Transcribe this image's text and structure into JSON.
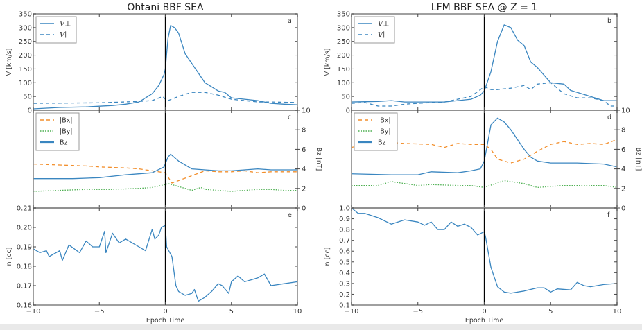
{
  "chart_data": [
    {
      "id": "a",
      "type": "line",
      "column_title": "Ohtani BBF SEA",
      "panel_label": "a",
      "ylabel": "V [km/s]",
      "xlim": [
        -10,
        10
      ],
      "ylim": [
        0,
        350
      ],
      "yticks": [
        0,
        50,
        100,
        150,
        200,
        250,
        300,
        350
      ],
      "xticks": [
        -10,
        -5,
        0,
        5,
        10
      ],
      "legend_position": "top-left",
      "series": [
        {
          "name": "V⊥",
          "style": "solid",
          "color": "#3a86c0",
          "x": [
            -10,
            -8,
            -6,
            -4,
            -3,
            -2,
            -1,
            -0.5,
            -0.1,
            0,
            0.2,
            0.4,
            0.7,
            1,
            1.5,
            2,
            2.5,
            3,
            3.5,
            4,
            4.5,
            5,
            6,
            7,
            8,
            9,
            10
          ],
          "y": [
            5,
            10,
            12,
            17,
            22,
            30,
            60,
            90,
            130,
            150,
            260,
            308,
            300,
            280,
            205,
            170,
            135,
            100,
            85,
            70,
            65,
            45,
            40,
            35,
            25,
            22,
            20
          ]
        },
        {
          "name": "V∥",
          "style": "dashed",
          "color": "#3a86c0",
          "x": [
            -10,
            -5,
            -2,
            -1,
            -0.2,
            0,
            0.2,
            1,
            2,
            3,
            4,
            5,
            6,
            7,
            8,
            10
          ],
          "y": [
            25,
            27,
            32,
            35,
            50,
            40,
            35,
            50,
            65,
            65,
            55,
            40,
            35,
            30,
            30,
            28
          ]
        }
      ]
    },
    {
      "id": "b",
      "type": "line",
      "column_title": "LFM BBF SEA @ Z = 1",
      "panel_label": "b",
      "ylabel": "V [km/s]",
      "xlim": [
        -10,
        10
      ],
      "ylim": [
        0,
        350
      ],
      "yticks": [
        0,
        50,
        100,
        150,
        200,
        250,
        300,
        350
      ],
      "xticks": [
        -10,
        -5,
        0,
        5,
        10
      ],
      "legend_position": "top-left",
      "series": [
        {
          "name": "V⊥",
          "style": "solid",
          "color": "#3a86c0",
          "x": [
            -10,
            -8,
            -7,
            -6,
            -5,
            -3,
            -2,
            -1,
            -0.3,
            0,
            0.5,
            1,
            1.5,
            2,
            2.5,
            3,
            3.5,
            4,
            5,
            6,
            6.5,
            7,
            8,
            9,
            10
          ],
          "y": [
            30,
            32,
            35,
            30,
            30,
            30,
            35,
            40,
            55,
            70,
            140,
            250,
            310,
            300,
            255,
            235,
            175,
            155,
            100,
            95,
            72,
            65,
            50,
            35,
            35
          ]
        },
        {
          "name": "V∥",
          "style": "dashed",
          "color": "#3a86c0",
          "x": [
            -10,
            -9,
            -8,
            -7,
            -6,
            -5,
            -3,
            -2,
            -1,
            0,
            0.5,
            1,
            2,
            3,
            3.5,
            4,
            5,
            6,
            7,
            8,
            9,
            9.5,
            10
          ],
          "y": [
            25,
            28,
            15,
            15,
            22,
            25,
            30,
            40,
            50,
            85,
            75,
            75,
            80,
            90,
            75,
            95,
            100,
            60,
            45,
            45,
            35,
            15,
            15
          ]
        }
      ]
    },
    {
      "id": "c",
      "type": "line",
      "panel_label": "c",
      "ylabel_right": "Bz [nT]",
      "xlim": [
        -10,
        10
      ],
      "ylim": [
        0,
        10
      ],
      "yticks_right": [
        0,
        2,
        4,
        6,
        8,
        10
      ],
      "xticks": [
        -10,
        -5,
        0,
        5,
        10
      ],
      "legend_position": "top-left",
      "series": [
        {
          "name": "|Bx|",
          "style": "dashed",
          "color": "#f28e2b",
          "x": [
            -10,
            -8,
            -6,
            -5,
            -3,
            -2,
            -1,
            0,
            0.5,
            1,
            2,
            3,
            4,
            5,
            6,
            7,
            8,
            9,
            10
          ],
          "y": [
            4.5,
            4.4,
            4.3,
            4.2,
            4.1,
            4.0,
            3.8,
            3.6,
            2.55,
            2.8,
            3.3,
            3.8,
            3.7,
            3.7,
            3.8,
            3.6,
            3.7,
            3.7,
            3.7
          ]
        },
        {
          "name": "|By|",
          "style": "dotted",
          "color": "#4caf50",
          "x": [
            -10,
            -8,
            -6,
            -4,
            -2,
            -1,
            0,
            0.2,
            1,
            1.5,
            2,
            2.7,
            3,
            4,
            5,
            6,
            7,
            8,
            9,
            10
          ],
          "y": [
            1.7,
            1.8,
            1.9,
            1.9,
            2.0,
            2.1,
            2.4,
            2.5,
            2.2,
            2.0,
            1.8,
            2.1,
            1.9,
            1.8,
            1.7,
            1.8,
            1.9,
            1.9,
            1.8,
            1.8
          ]
        },
        {
          "name": "Bz",
          "style": "solid",
          "color": "#3a86c0",
          "x": [
            -10,
            -7,
            -5,
            -3,
            -2,
            -1,
            -0.1,
            0.2,
            0.4,
            1,
            2,
            3,
            4,
            5,
            6,
            7,
            8,
            9,
            10
          ],
          "y": [
            3.0,
            3.0,
            3.1,
            3.4,
            3.5,
            3.6,
            4.2,
            5.2,
            5.5,
            4.8,
            4.0,
            3.9,
            3.8,
            3.8,
            3.9,
            4.0,
            3.9,
            3.9,
            3.9
          ]
        }
      ]
    },
    {
      "id": "d",
      "type": "line",
      "panel_label": "d",
      "ylabel_right": "Bz [nT]",
      "xlim": [
        -10,
        10
      ],
      "ylim": [
        0,
        10
      ],
      "yticks_right": [
        0,
        2,
        4,
        6,
        8,
        10
      ],
      "xticks": [
        -10,
        -5,
        0,
        5,
        10
      ],
      "legend_position": "top-left",
      "series": [
        {
          "name": "|Bx|",
          "style": "dashed",
          "color": "#f28e2b",
          "x": [
            -10,
            -8,
            -6,
            -4,
            -3,
            -2,
            -1,
            0,
            0.5,
            1,
            2,
            3,
            4,
            5,
            6,
            7,
            8,
            9,
            10
          ],
          "y": [
            6.2,
            6.8,
            6.6,
            6.5,
            6.2,
            6.6,
            6.5,
            6.5,
            6.0,
            5.0,
            4.6,
            5.0,
            5.8,
            6.5,
            6.8,
            6.5,
            6.6,
            6.5,
            7.0
          ]
        },
        {
          "name": "|By|",
          "style": "dotted",
          "color": "#4caf50",
          "x": [
            -10,
            -8,
            -7,
            -5,
            -4,
            -2,
            -1,
            0,
            1.5,
            3,
            4,
            6,
            9,
            10
          ],
          "y": [
            2.3,
            2.3,
            2.7,
            2.3,
            2.4,
            2.3,
            2.3,
            2.1,
            2.8,
            2.5,
            2.1,
            2.3,
            2.3,
            2.1
          ]
        },
        {
          "name": "Bz",
          "style": "solid",
          "color": "#3a86c0",
          "x": [
            -10,
            -7,
            -5,
            -4,
            -2,
            -1,
            -0.3,
            0,
            0.5,
            1,
            1.5,
            2,
            3,
            3.5,
            4,
            5,
            7,
            9,
            10
          ],
          "y": [
            3.5,
            3.4,
            3.4,
            3.7,
            3.6,
            3.8,
            4.0,
            4.8,
            8.5,
            9.2,
            8.8,
            8.0,
            6.0,
            5.2,
            4.8,
            4.6,
            4.6,
            4.5,
            4.2
          ]
        }
      ]
    },
    {
      "id": "e",
      "type": "line",
      "panel_label": "e",
      "ylabel": "n [cc]",
      "xlabel": "Epoch Time",
      "xlim": [
        -10,
        10
      ],
      "ylim": [
        0.16,
        0.21
      ],
      "yticks": [
        0.16,
        0.17,
        0.18,
        0.19,
        0.2,
        0.21
      ],
      "xticks": [
        -10,
        -5,
        0,
        5,
        10
      ],
      "series": [
        {
          "style": "solid",
          "color": "#3a86c0",
          "x": [
            -10,
            -9.5,
            -9,
            -8.8,
            -8,
            -7.8,
            -7.3,
            -6.5,
            -6,
            -5.5,
            -5,
            -4.6,
            -4.5,
            -4,
            -3.5,
            -3,
            -2,
            -1.5,
            -1,
            -0.8,
            -0.5,
            -0.3,
            0,
            0.1,
            0.5,
            0.8,
            1,
            1.5,
            2,
            2.2,
            2.5,
            3,
            3.5,
            4,
            4.3,
            4.8,
            5,
            5.5,
            6,
            6.5,
            7,
            7.5,
            8,
            9,
            10
          ],
          "y": [
            0.189,
            0.187,
            0.188,
            0.185,
            0.188,
            0.183,
            0.191,
            0.187,
            0.193,
            0.19,
            0.19,
            0.198,
            0.187,
            0.197,
            0.192,
            0.194,
            0.19,
            0.188,
            0.199,
            0.194,
            0.196,
            0.2,
            0.201,
            0.19,
            0.185,
            0.17,
            0.167,
            0.165,
            0.166,
            0.168,
            0.162,
            0.164,
            0.167,
            0.171,
            0.17,
            0.166,
            0.172,
            0.175,
            0.172,
            0.173,
            0.174,
            0.176,
            0.17,
            0.171,
            0.172
          ]
        }
      ]
    },
    {
      "id": "f",
      "type": "line",
      "panel_label": "f",
      "ylabel": "n [cc]",
      "xlabel": "Epoch Time",
      "xlim": [
        -10,
        10
      ],
      "ylim": [
        0.1,
        1.0
      ],
      "yticks": [
        0.1,
        0.2,
        0.3,
        0.4,
        0.5,
        0.6,
        0.7,
        0.8,
        0.9,
        1.0
      ],
      "xticks": [
        -10,
        -5,
        0,
        5,
        10
      ],
      "series": [
        {
          "style": "solid",
          "color": "#3a86c0",
          "x": [
            -10,
            -9.5,
            -9,
            -8,
            -7,
            -6,
            -5,
            -4.5,
            -4,
            -3.5,
            -3,
            -2.5,
            -2,
            -1.5,
            -1,
            -0.5,
            0,
            0.1,
            0.5,
            1,
            1.5,
            2,
            3,
            4,
            4.5,
            5,
            5.5,
            6.5,
            7,
            7.5,
            8,
            9,
            10
          ],
          "y": [
            1.0,
            0.95,
            0.95,
            0.91,
            0.85,
            0.89,
            0.87,
            0.84,
            0.87,
            0.8,
            0.8,
            0.87,
            0.83,
            0.85,
            0.82,
            0.75,
            0.78,
            0.73,
            0.45,
            0.27,
            0.22,
            0.21,
            0.23,
            0.26,
            0.26,
            0.22,
            0.25,
            0.24,
            0.31,
            0.28,
            0.27,
            0.29,
            0.3
          ]
        }
      ]
    }
  ],
  "colors": {
    "blue": "#3a86c0",
    "orange": "#f28e2b",
    "green": "#4caf50",
    "zero_line": "#000000",
    "axes": "#888888"
  }
}
